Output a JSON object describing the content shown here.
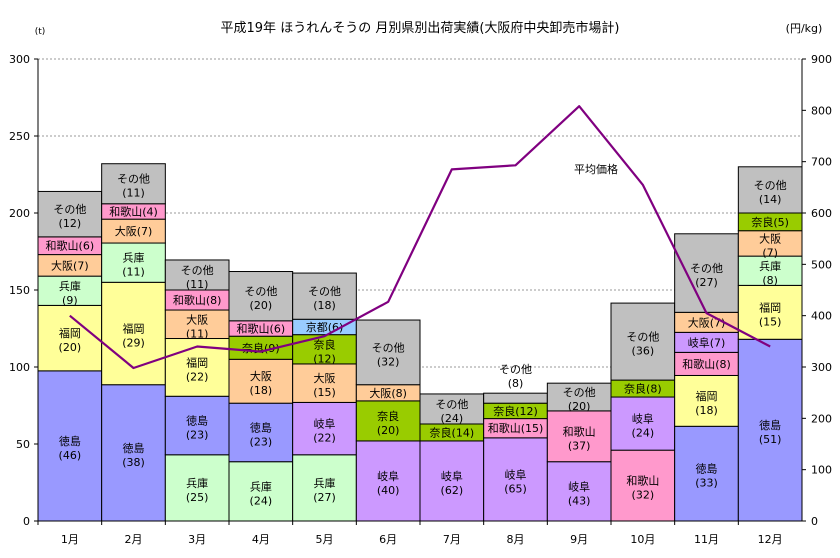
{
  "chart_data": {
    "type": "bar",
    "title": "平成19年 ほうれんそうの 月別県別出荷実績(大阪府中央卸売市場計)",
    "left_unit": "(t)",
    "right_unit": "(円/kg)",
    "ylim": [
      0,
      300
    ],
    "y2lim": [
      0,
      900
    ],
    "yticks": [
      "0",
      "50",
      "100",
      "150",
      "200",
      "250",
      "300"
    ],
    "y2ticks": [
      "0",
      "100",
      "200",
      "300",
      "400",
      "500",
      "600",
      "700",
      "800",
      "900"
    ],
    "categories": [
      "1月",
      "2月",
      "3月",
      "4月",
      "5月",
      "6月",
      "7月",
      "8月",
      "9月",
      "10月",
      "11月",
      "12月"
    ],
    "stacks": [
      {
        "month": "1月",
        "segments": [
          {
            "name": "徳島",
            "value": 97.5,
            "label": "(46)",
            "color": "#9999ff"
          },
          {
            "name": "福岡",
            "value": 42.5,
            "label": "(20)",
            "color": "#ffff99"
          },
          {
            "name": "兵庫",
            "value": 19.0,
            "label": "(9)",
            "color": "#ccffcc"
          },
          {
            "name": "大阪",
            "value": 14.0,
            "label": "(7)",
            "color": "#ffcc99"
          },
          {
            "name": "和歌山",
            "value": 11.5,
            "label": "(6)",
            "color": "#ff99cc"
          },
          {
            "name": "その他",
            "value": 29.5,
            "label": "(12)",
            "color": "#c0c0c0"
          }
        ]
      },
      {
        "month": "2月",
        "segments": [
          {
            "name": "徳島",
            "value": 88.5,
            "label": "(38)",
            "color": "#9999ff"
          },
          {
            "name": "福岡",
            "value": 66.5,
            "label": "(29)",
            "color": "#ffff99"
          },
          {
            "name": "兵庫",
            "value": 25.5,
            "label": "(11)",
            "color": "#ccffcc"
          },
          {
            "name": "大阪",
            "value": 15.5,
            "label": "(7)",
            "color": "#ffcc99"
          },
          {
            "name": "和歌山",
            "value": 10.0,
            "label": "(4)",
            "color": "#ff99cc"
          },
          {
            "name": "その他",
            "value": 26.0,
            "label": "(11)",
            "color": "#c0c0c0"
          }
        ]
      },
      {
        "month": "3月",
        "segments": [
          {
            "name": "兵庫",
            "value": 43.0,
            "label": "(25)",
            "color": "#ccffcc"
          },
          {
            "name": "徳島",
            "value": 38.0,
            "label": "(23)",
            "color": "#9999ff"
          },
          {
            "name": "福岡",
            "value": 37.5,
            "label": "(22)",
            "color": "#ffff99"
          },
          {
            "name": "大阪",
            "value": 18.5,
            "label": "(11)",
            "color": "#ffcc99"
          },
          {
            "name": "和歌山",
            "value": 13.0,
            "label": "(8)",
            "color": "#ff99cc"
          },
          {
            "name": "その他",
            "value": 19.5,
            "label": "(11)",
            "color": "#c0c0c0"
          }
        ]
      },
      {
        "month": "4月",
        "segments": [
          {
            "name": "兵庫",
            "value": 38.5,
            "label": "(24)",
            "color": "#ccffcc"
          },
          {
            "name": "徳島",
            "value": 38.0,
            "label": "(23)",
            "color": "#9999ff"
          },
          {
            "name": "大阪",
            "value": 28.5,
            "label": "(18)",
            "color": "#ffcc99"
          },
          {
            "name": "奈良",
            "value": 15.0,
            "label": "(9)",
            "color": "#99cc00"
          },
          {
            "name": "和歌山",
            "value": 10.0,
            "label": "(6)",
            "color": "#ff99cc"
          },
          {
            "name": "その他",
            "value": 32.0,
            "label": "(20)",
            "color": "#c0c0c0"
          }
        ]
      },
      {
        "month": "5月",
        "segments": [
          {
            "name": "兵庫",
            "value": 43.0,
            "label": "(27)",
            "color": "#ccffcc"
          },
          {
            "name": "岐阜",
            "value": 34.0,
            "label": "(22)",
            "color": "#cc99ff"
          },
          {
            "name": "大阪",
            "value": 25.0,
            "label": "(15)",
            "color": "#ffcc99"
          },
          {
            "name": "奈良",
            "value": 19.0,
            "label": "(12)",
            "color": "#99cc00"
          },
          {
            "name": "京都",
            "value": 10.0,
            "label": "(6)",
            "color": "#99ccff"
          },
          {
            "name": "その他",
            "value": 30.0,
            "label": "(18)",
            "color": "#c0c0c0"
          }
        ]
      },
      {
        "month": "6月",
        "segments": [
          {
            "name": "岐阜",
            "value": 52.0,
            "label": "(40)",
            "color": "#cc99ff"
          },
          {
            "name": "奈良",
            "value": 26.0,
            "label": "(20)",
            "color": "#99cc00"
          },
          {
            "name": "大阪",
            "value": 10.5,
            "label": "(8)",
            "color": "#ffcc99"
          },
          {
            "name": "その他",
            "value": 42.0,
            "label": "(32)",
            "color": "#c0c0c0"
          }
        ]
      },
      {
        "month": "7月",
        "segments": [
          {
            "name": "岐阜",
            "value": 52.0,
            "label": "(62)",
            "color": "#cc99ff"
          },
          {
            "name": "奈良",
            "value": 11.0,
            "label": "(14)",
            "color": "#99cc00"
          },
          {
            "name": "その他",
            "value": 19.5,
            "label": "(24)",
            "color": "#c0c0c0"
          }
        ]
      },
      {
        "month": "8月",
        "segments": [
          {
            "name": "岐阜",
            "value": 54.0,
            "label": "(65)",
            "color": "#cc99ff"
          },
          {
            "name": "和歌山",
            "value": 12.5,
            "label": "(15)",
            "color": "#ff99cc"
          },
          {
            "name": "奈良",
            "value": 10.0,
            "label": "(12)",
            "color": "#99cc00"
          },
          {
            "name": "その他",
            "value": 6.5,
            "label": "(8)",
            "color": "#c0c0c0",
            "label_above": true
          }
        ]
      },
      {
        "month": "9月",
        "segments": [
          {
            "name": "岐阜",
            "value": 38.5,
            "label": "(43)",
            "color": "#cc99ff"
          },
          {
            "name": "和歌山",
            "value": 33.0,
            "label": "(37)",
            "color": "#ff99cc"
          },
          {
            "name": "その他",
            "value": 18.0,
            "label": "(20)",
            "color": "#c0c0c0"
          }
        ]
      },
      {
        "month": "10月",
        "segments": [
          {
            "name": "和歌山",
            "value": 46.0,
            "label": "(32)",
            "color": "#ff99cc"
          },
          {
            "name": "岐阜",
            "value": 34.5,
            "label": "(24)",
            "color": "#cc99ff"
          },
          {
            "name": "奈良",
            "value": 11.0,
            "label": "(8)",
            "color": "#99cc00"
          },
          {
            "name": "その他",
            "value": 50.0,
            "label": "(36)",
            "color": "#c0c0c0"
          }
        ]
      },
      {
        "month": "11月",
        "segments": [
          {
            "name": "徳島",
            "value": 61.5,
            "label": "(33)",
            "color": "#9999ff"
          },
          {
            "name": "福岡",
            "value": 33.0,
            "label": "(18)",
            "color": "#ffff99"
          },
          {
            "name": "和歌山",
            "value": 15.0,
            "label": "(8)",
            "color": "#ff99cc"
          },
          {
            "name": "岐阜",
            "value": 13.0,
            "label": "(7)",
            "color": "#cc99ff"
          },
          {
            "name": "大阪",
            "value": 13.0,
            "label": "(7)",
            "color": "#ffcc99"
          },
          {
            "name": "その他",
            "value": 51.0,
            "label": "(27)",
            "color": "#c0c0c0"
          }
        ]
      },
      {
        "month": "12月",
        "segments": [
          {
            "name": "徳島",
            "value": 118.0,
            "label": "(51)",
            "color": "#9999ff"
          },
          {
            "name": "福岡",
            "value": 35.0,
            "label": "(15)",
            "color": "#ffff99"
          },
          {
            "name": "兵庫",
            "value": 19.0,
            "label": "(8)",
            "color": "#ccffcc"
          },
          {
            "name": "大阪",
            "value": 16.5,
            "label": "(7)",
            "color": "#ffcc99"
          },
          {
            "name": "奈良",
            "value": 11.5,
            "label": "(5)",
            "color": "#99cc00"
          },
          {
            "name": "その他",
            "value": 30.0,
            "label": "(14)",
            "color": "#c0c0c0"
          }
        ]
      }
    ],
    "price_series": {
      "name": "平均価格",
      "color": "#800080",
      "values": [
        400,
        298,
        340,
        330,
        360,
        427,
        685,
        693,
        808,
        655,
        405,
        340
      ]
    }
  }
}
